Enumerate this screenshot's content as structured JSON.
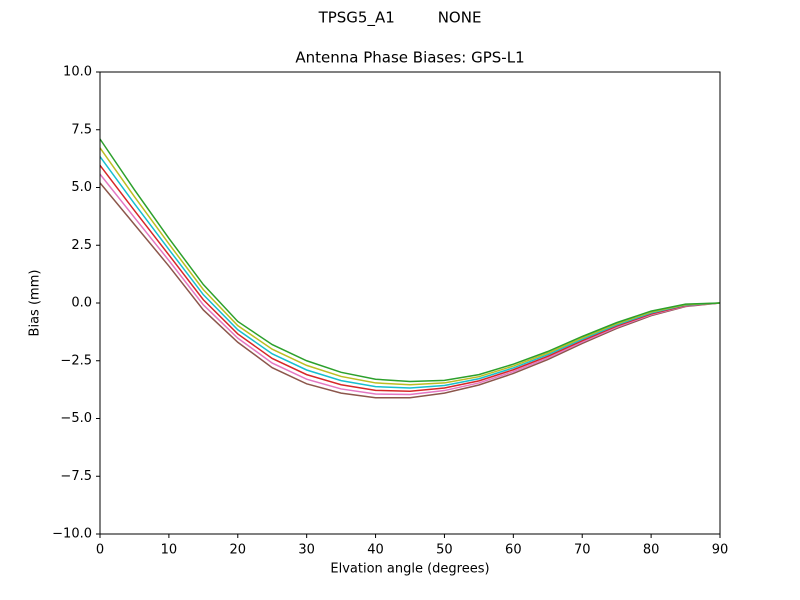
{
  "chart_data": {
    "type": "line",
    "suptitle": "TPSG5_A1         NONE",
    "title": "Antenna Phase Biases: GPS-L1",
    "xlabel": "Elvation angle (degrees)",
    "ylabel": "Bias (mm)",
    "x": [
      0,
      5,
      10,
      15,
      20,
      25,
      30,
      35,
      40,
      45,
      50,
      55,
      60,
      65,
      70,
      75,
      80,
      85,
      90
    ],
    "xlim": [
      0,
      90
    ],
    "xticks": [
      0,
      10,
      20,
      30,
      40,
      50,
      60,
      70,
      80,
      90
    ],
    "ylim": [
      -10,
      10
    ],
    "yticks": [
      {
        "value": -10,
        "label": "−10.0"
      },
      {
        "value": -7.5,
        "label": "−7.5"
      },
      {
        "value": -5,
        "label": "−5.0"
      },
      {
        "value": -2.5,
        "label": "−2.5"
      },
      {
        "value": 0,
        "label": "0.0"
      },
      2.5,
      {
        "value": 5,
        "label": "5.0"
      },
      7.5,
      {
        "value": 10,
        "label": "10.0"
      }
    ],
    "grid": false,
    "series": [
      {
        "color": "#8c564b",
        "values": [
          5.2,
          3.4,
          1.6,
          -0.3,
          -1.7,
          -2.8,
          -3.5,
          -3.9,
          -4.1,
          -4.1,
          -3.9,
          -3.55,
          -3.05,
          -2.45,
          -1.75,
          -1.1,
          -0.55,
          -0.15,
          0
        ]
      },
      {
        "color": "#e377c2",
        "values": [
          5.58,
          3.7,
          1.84,
          -0.08,
          -1.52,
          -2.6,
          -3.3,
          -3.72,
          -3.94,
          -3.96,
          -3.79,
          -3.46,
          -2.97,
          -2.38,
          -1.69,
          -1.05,
          -0.51,
          -0.13,
          0
        ]
      },
      {
        "color": "#d62728",
        "values": [
          5.96,
          4.0,
          2.08,
          0.14,
          -1.34,
          -2.4,
          -3.1,
          -3.54,
          -3.78,
          -3.82,
          -3.68,
          -3.37,
          -2.89,
          -2.31,
          -1.63,
          -1.0,
          -0.47,
          -0.11,
          0
        ]
      },
      {
        "color": "#17becf",
        "values": [
          6.34,
          4.3,
          2.32,
          0.36,
          -1.16,
          -2.2,
          -2.9,
          -3.36,
          -3.62,
          -3.68,
          -3.57,
          -3.28,
          -2.81,
          -2.24,
          -1.57,
          -0.95,
          -0.43,
          -0.09,
          0
        ]
      },
      {
        "color": "#bcbd22",
        "values": [
          6.72,
          4.6,
          2.56,
          0.58,
          -0.98,
          -2.0,
          -2.7,
          -3.18,
          -3.46,
          -3.54,
          -3.46,
          -3.19,
          -2.73,
          -2.17,
          -1.51,
          -0.9,
          -0.39,
          -0.07,
          0
        ]
      },
      {
        "color": "#2ca02c",
        "values": [
          7.1,
          4.9,
          2.8,
          0.8,
          -0.8,
          -1.8,
          -2.5,
          -3.0,
          -3.3,
          -3.4,
          -3.35,
          -3.1,
          -2.65,
          -2.1,
          -1.45,
          -0.85,
          -0.35,
          -0.05,
          0
        ]
      }
    ]
  }
}
